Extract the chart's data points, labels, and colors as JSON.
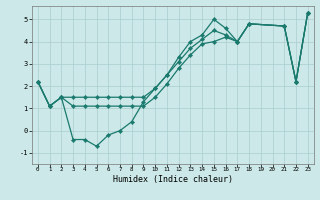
{
  "xlabel": "Humidex (Indice chaleur)",
  "bg_color": "#cce8e8",
  "line_color": "#1a7a6e",
  "grid_color": "#aacece",
  "xlim": [
    -0.5,
    23.5
  ],
  "ylim": [
    -1.5,
    5.6
  ],
  "yticks": [
    -1,
    0,
    1,
    2,
    3,
    4,
    5
  ],
  "xticks": [
    0,
    1,
    2,
    3,
    4,
    5,
    6,
    7,
    8,
    9,
    10,
    11,
    12,
    13,
    14,
    15,
    16,
    17,
    18,
    19,
    20,
    21,
    22,
    23
  ],
  "series": [
    {
      "x": [
        0,
        1,
        2,
        3,
        4,
        5,
        6,
        7,
        8,
        9,
        10,
        11,
        12,
        13,
        14,
        15,
        16,
        17,
        18,
        21,
        22,
        23
      ],
      "y": [
        2.2,
        1.1,
        1.5,
        -0.4,
        -0.4,
        -0.7,
        -0.2,
        0.0,
        0.4,
        1.3,
        1.9,
        2.5,
        3.3,
        4.0,
        4.3,
        5.0,
        4.6,
        4.0,
        4.8,
        4.7,
        2.2,
        5.3
      ]
    },
    {
      "x": [
        0,
        1,
        2,
        3,
        4,
        5,
        6,
        7,
        8,
        9,
        10,
        11,
        12,
        13,
        14,
        15,
        16,
        17,
        18,
        21,
        22,
        23
      ],
      "y": [
        2.2,
        1.1,
        1.5,
        1.1,
        1.1,
        1.1,
        1.1,
        1.1,
        1.1,
        1.1,
        1.5,
        2.1,
        2.8,
        3.4,
        3.9,
        4.0,
        4.2,
        4.0,
        4.8,
        4.7,
        2.2,
        5.3
      ]
    },
    {
      "x": [
        0,
        1,
        2,
        3,
        4,
        5,
        6,
        7,
        8,
        9,
        10,
        11,
        12,
        13,
        14,
        15,
        16,
        17,
        18,
        21,
        22,
        23
      ],
      "y": [
        2.2,
        1.1,
        1.5,
        1.5,
        1.5,
        1.5,
        1.5,
        1.5,
        1.5,
        1.5,
        1.9,
        2.5,
        3.1,
        3.7,
        4.1,
        4.5,
        4.3,
        4.0,
        4.8,
        4.7,
        2.2,
        5.3
      ]
    }
  ]
}
